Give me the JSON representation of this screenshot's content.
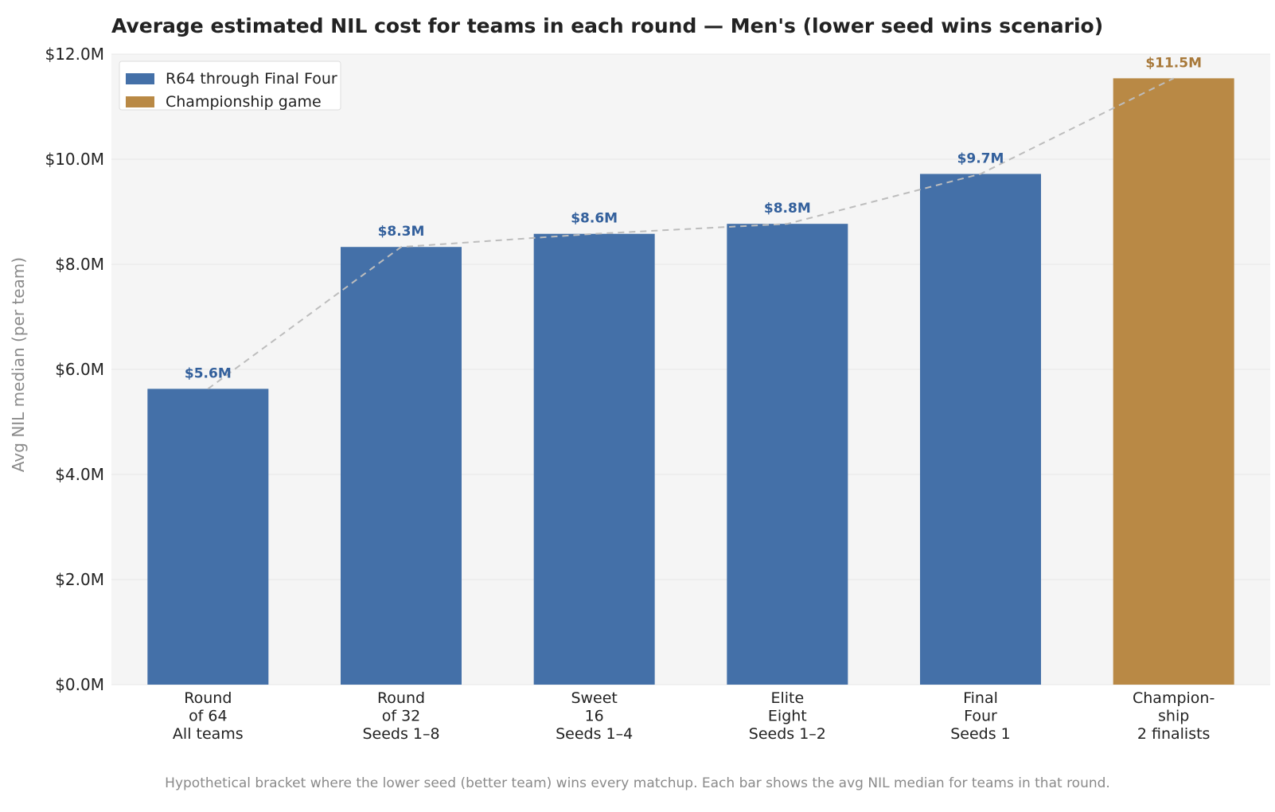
{
  "chart_data": {
    "type": "bar",
    "title": "Average estimated NIL cost for teams in each round — Men's (lower seed wins scenario)",
    "ylabel": "Avg NIL median (per team)",
    "xlabel": "",
    "ylim": [
      0,
      12
    ],
    "yticks": [
      0,
      2,
      4,
      6,
      8,
      10,
      12
    ],
    "ytick_labels": [
      "$0.0M",
      "$2.0M",
      "$4.0M",
      "$6.0M",
      "$8.0M",
      "$10.0M",
      "$12.0M"
    ],
    "categories": [
      [
        "Round",
        "of 64",
        "All teams"
      ],
      [
        "Round",
        "of 32",
        "Seeds 1–8"
      ],
      [
        "Sweet",
        "16",
        "Seeds 1–4"
      ],
      [
        "Elite",
        "Eight",
        "Seeds 1–2"
      ],
      [
        "Final",
        "Four",
        "Seeds 1"
      ],
      [
        "Champion-",
        "ship",
        "2 finalists"
      ]
    ],
    "values": [
      5.63,
      8.33,
      8.58,
      8.77,
      9.72,
      11.54
    ],
    "value_labels": [
      "$5.6M",
      "$8.3M",
      "$8.6M",
      "$8.8M",
      "$9.7M",
      "$11.5M"
    ],
    "groups": [
      0,
      0,
      0,
      0,
      0,
      1
    ],
    "legend": {
      "position": "top-left",
      "entries": [
        {
          "label": "R64 through Final Four",
          "color": "#4470a8"
        },
        {
          "label": "Championship game",
          "color": "#b98945"
        }
      ]
    },
    "trend_line": {
      "style": "dashed",
      "color": "#bdbdbd"
    },
    "grid": true
  },
  "caption": "Hypothetical bracket where the lower seed (better team) wins every matchup. Each bar shows the avg NIL median for teams in that round.",
  "colors": {
    "bar_primary": "#4470a8",
    "bar_highlight": "#b98945",
    "label_primary": "#33609c",
    "label_highlight": "#a8793a",
    "plot_background": "#f5f5f5",
    "grid": "#e8e8e8",
    "trend": "#bdbdbd"
  }
}
